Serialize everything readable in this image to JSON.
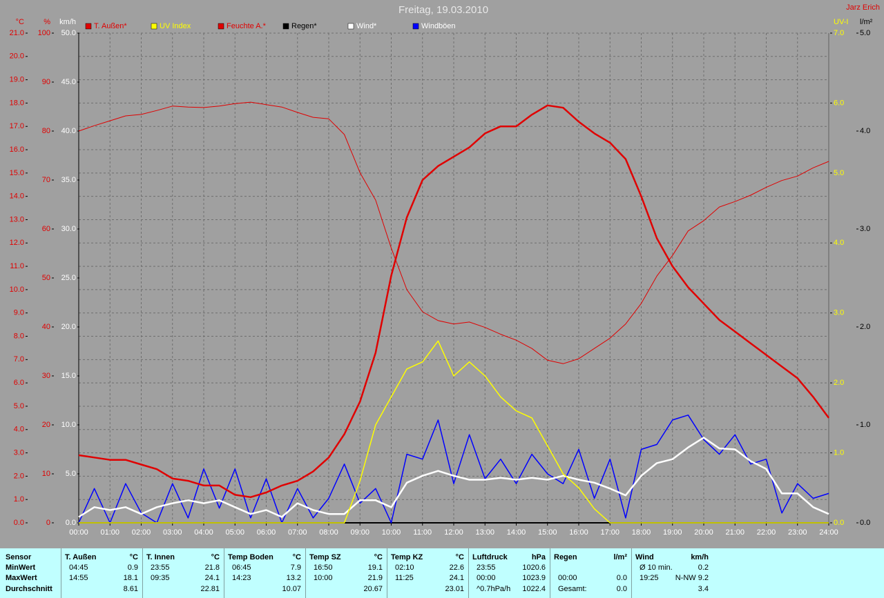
{
  "chart_data": {
    "type": "line",
    "title": "Freitag, 19.03.2010",
    "author": "Jarz Erich",
    "grid": true,
    "xlim": [
      0,
      24
    ],
    "xticks": [
      {
        "value": 0,
        "label": "00:00"
      },
      {
        "value": 1,
        "label": "01:00"
      },
      {
        "value": 2,
        "label": "02:00"
      },
      {
        "value": 3,
        "label": "03:00"
      },
      {
        "value": 4,
        "label": "04:00"
      },
      {
        "value": 5,
        "label": "05:00"
      },
      {
        "value": 6,
        "label": "06:00"
      },
      {
        "value": 7,
        "label": "07:00"
      },
      {
        "value": 8,
        "label": "08:00"
      },
      {
        "value": 9,
        "label": "09:00"
      },
      {
        "value": 10,
        "label": "10:00"
      },
      {
        "value": 11,
        "label": "11:00"
      },
      {
        "value": 12,
        "label": "12:00"
      },
      {
        "value": 13,
        "label": "13:00"
      },
      {
        "value": 14,
        "label": "14:00"
      },
      {
        "value": 15,
        "label": "15:00"
      },
      {
        "value": 16,
        "label": "16:00"
      },
      {
        "value": 17,
        "label": "17:00"
      },
      {
        "value": 18,
        "label": "18:00"
      },
      {
        "value": 19,
        "label": "19:00"
      },
      {
        "value": 20,
        "label": "20:00"
      },
      {
        "value": 21,
        "label": "21:00"
      },
      {
        "value": 22,
        "label": "22:00"
      },
      {
        "value": 23,
        "label": "23:00"
      },
      {
        "value": 24,
        "label": "24:00"
      }
    ],
    "axes": [
      {
        "label": "°C",
        "side": "left",
        "color": "#e00000",
        "lim": [
          0,
          21
        ],
        "ticks": [
          {
            "value": 0,
            "label": "0.0"
          },
          {
            "value": 1,
            "label": "1.0"
          },
          {
            "value": 2,
            "label": "2.0"
          },
          {
            "value": 3,
            "label": "3.0"
          },
          {
            "value": 4,
            "label": "4.0"
          },
          {
            "value": 5,
            "label": "5.0"
          },
          {
            "value": 6,
            "label": "6.0"
          },
          {
            "value": 7,
            "label": "7.0"
          },
          {
            "value": 8,
            "label": "8.0"
          },
          {
            "value": 9,
            "label": "9.0"
          },
          {
            "value": 10,
            "label": "10.0"
          },
          {
            "value": 11,
            "label": "11.0"
          },
          {
            "value": 12,
            "label": "12.0"
          },
          {
            "value": 13,
            "label": "13.0"
          },
          {
            "value": 14,
            "label": "14.0"
          },
          {
            "value": 15,
            "label": "15.0"
          },
          {
            "value": 16,
            "label": "16.0"
          },
          {
            "value": 17,
            "label": "17.0"
          },
          {
            "value": 18,
            "label": "18.0"
          },
          {
            "value": 19,
            "label": "19.0"
          },
          {
            "value": 20,
            "label": "20.0"
          },
          {
            "value": 21,
            "label": "21.0"
          }
        ]
      },
      {
        "label": "%",
        "side": "left",
        "color": "#e00000",
        "lim": [
          0,
          100
        ],
        "ticks": [
          0,
          10,
          20,
          30,
          40,
          50,
          60,
          70,
          80,
          90,
          100
        ]
      },
      {
        "label": "km/h",
        "side": "left",
        "color": "#ffffff",
        "lim": [
          0,
          50
        ],
        "ticks": [
          {
            "value": 0,
            "label": "0.0"
          },
          {
            "value": 5,
            "label": "5.0"
          },
          {
            "value": 10,
            "label": "10.0"
          },
          {
            "value": 15,
            "label": "15.0"
          },
          {
            "value": 20,
            "label": "20.0"
          },
          {
            "value": 25,
            "label": "25.0"
          },
          {
            "value": 30,
            "label": "30.0"
          },
          {
            "value": 35,
            "label": "35.0"
          },
          {
            "value": 40,
            "label": "40.0"
          },
          {
            "value": 45,
            "label": "45.0"
          },
          {
            "value": 50,
            "label": "50.0"
          }
        ]
      },
      {
        "label": "UV-I",
        "side": "right",
        "color": "#ffff00",
        "lim": [
          0,
          7
        ],
        "ticks": [
          {
            "value": 0,
            "label": "0.0"
          },
          {
            "value": 1,
            "label": "1.0"
          },
          {
            "value": 2,
            "label": "2.0"
          },
          {
            "value": 3,
            "label": "3.0"
          },
          {
            "value": 4,
            "label": "4.0"
          },
          {
            "value": 5,
            "label": "5.0"
          },
          {
            "value": 6,
            "label": "6.0"
          },
          {
            "value": 7,
            "label": "7.0"
          }
        ]
      },
      {
        "label": "l/m²",
        "side": "right",
        "color": "#000000",
        "lim": [
          0,
          5
        ],
        "ticks": [
          {
            "value": 0,
            "label": "0.0"
          },
          {
            "value": 1,
            "label": "1.0"
          },
          {
            "value": 2,
            "label": "2.0"
          },
          {
            "value": 3,
            "label": "3.0"
          },
          {
            "value": 4,
            "label": "4.0"
          },
          {
            "value": 5,
            "label": "5.0"
          }
        ]
      }
    ],
    "x": [
      0,
      0.5,
      1,
      1.5,
      2,
      2.5,
      3,
      3.5,
      4,
      4.5,
      5,
      5.5,
      6,
      6.5,
      7,
      7.5,
      8,
      8.5,
      9,
      9.5,
      10,
      10.5,
      11,
      11.5,
      12,
      12.5,
      13,
      13.5,
      14,
      14.5,
      15,
      15.5,
      16,
      16.5,
      17,
      17.5,
      18,
      18.5,
      19,
      19.5,
      20,
      20.5,
      21,
      21.5,
      22,
      22.5,
      23,
      23.5,
      24
    ],
    "series": [
      {
        "name": "T. Außen*",
        "color": "#e00000",
        "axis": 0,
        "width": 2.5,
        "values": [
          2.9,
          2.8,
          2.7,
          2.7,
          2.5,
          2.3,
          1.9,
          1.8,
          1.6,
          1.6,
          1.2,
          1.1,
          1.3,
          1.6,
          1.8,
          2.2,
          2.8,
          3.8,
          5.2,
          7.3,
          10.6,
          13.1,
          14.7,
          15.3,
          15.7,
          16.1,
          16.7,
          17.0,
          17.0,
          17.5,
          17.9,
          17.8,
          17.2,
          16.7,
          16.3,
          15.6,
          14.0,
          12.2,
          11.0,
          10.1,
          9.4,
          8.7,
          8.2,
          7.7,
          7.2,
          6.7,
          6.2,
          5.4,
          4.5
        ]
      },
      {
        "name": "UV Index",
        "color": "#ffff00",
        "axis": 3,
        "width": 1.5,
        "values": [
          0,
          0,
          0,
          0,
          0,
          0,
          0,
          0,
          0,
          0,
          0,
          0,
          0,
          0,
          0,
          0,
          0,
          0,
          0.6,
          1.4,
          1.8,
          2.2,
          2.3,
          2.6,
          2.1,
          2.3,
          2.1,
          1.8,
          1.6,
          1.5,
          1.1,
          0.7,
          0.5,
          0.2,
          0,
          0,
          0,
          0,
          0,
          0,
          0,
          0,
          0,
          0,
          0,
          0,
          0,
          0,
          0
        ]
      },
      {
        "name": "Feuchte A.*",
        "color": "#e00000",
        "axis": 1,
        "width": 1,
        "values": [
          80.0,
          81.1,
          82.1,
          83.1,
          83.4,
          84.2,
          85.1,
          84.9,
          84.8,
          85.1,
          85.6,
          85.9,
          85.4,
          84.9,
          83.8,
          82.8,
          82.5,
          79.3,
          71.5,
          65.9,
          56.1,
          47.6,
          43.1,
          41.3,
          40.6,
          41.0,
          39.9,
          38.5,
          37.3,
          35.6,
          33.2,
          32.5,
          33.5,
          35.6,
          37.7,
          40.6,
          44.8,
          50.4,
          54.6,
          59.6,
          61.7,
          64.5,
          65.6,
          66.9,
          68.5,
          69.9,
          70.8,
          72.5,
          73.8
        ]
      },
      {
        "name": "Regen*",
        "color": "#000000",
        "axis": 4,
        "width": 2,
        "values": [
          0,
          0,
          0,
          0,
          0,
          0,
          0,
          0,
          0,
          0,
          0,
          0,
          0,
          0,
          0,
          0,
          0,
          0,
          0,
          0,
          0,
          0,
          0,
          0,
          0,
          0,
          0,
          0,
          0,
          0,
          0,
          0,
          0,
          0,
          0,
          0,
          0,
          0,
          0,
          0,
          0,
          0,
          0,
          0,
          0,
          0,
          0,
          0,
          0
        ]
      },
      {
        "name": "Wind*",
        "color": "#ffffff",
        "axis": 2,
        "width": 2.5,
        "values": [
          0.6,
          1.6,
          1.3,
          1.6,
          0.9,
          1.6,
          2.0,
          2.3,
          2.0,
          2.3,
          1.6,
          0.9,
          1.3,
          0.6,
          2.0,
          1.3,
          0.9,
          0.9,
          2.3,
          2.3,
          1.6,
          4.1,
          4.8,
          5.3,
          4.8,
          4.4,
          4.4,
          4.6,
          4.4,
          4.6,
          4.4,
          4.8,
          4.4,
          4.1,
          3.5,
          2.8,
          4.8,
          6.1,
          6.5,
          7.7,
          8.7,
          7.6,
          7.5,
          6.3,
          5.5,
          3.0,
          3.0,
          1.6,
          0.9
        ]
      },
      {
        "name": "Windböen",
        "color": "#0000ff",
        "axis": 2,
        "width": 1.5,
        "values": [
          0,
          3.5,
          0,
          4.0,
          1.0,
          0,
          4.0,
          0.5,
          5.5,
          1.5,
          5.5,
          0.5,
          4.5,
          0,
          3.5,
          0.5,
          2.5,
          6.0,
          2.0,
          3.5,
          0,
          7.0,
          6.5,
          10.5,
          4.0,
          9.0,
          4.5,
          6.5,
          4.0,
          7.0,
          5.0,
          4.0,
          7.5,
          2.5,
          6.5,
          0.5,
          7.5,
          8.0,
          10.5,
          11.0,
          8.5,
          7.0,
          9.0,
          6.0,
          6.5,
          1.0,
          4.0,
          2.5,
          3.0
        ]
      }
    ]
  },
  "stats": {
    "row_labels": [
      "Sensor",
      "MinWert",
      "MaxWert",
      "Durchschnitt"
    ],
    "groups": [
      {
        "name": "T. Außen",
        "unit": "°C",
        "rows": [
          {
            "time": "04:45",
            "value": "0.9"
          },
          {
            "time": "14:55",
            "value": "18.1"
          },
          {
            "value": "8.61"
          }
        ]
      },
      {
        "name": "T. Innen",
        "unit": "°C",
        "rows": [
          {
            "time": "23:55",
            "value": "21.8"
          },
          {
            "time": "09:35",
            "value": "24.1"
          },
          {
            "value": "22.81"
          }
        ]
      },
      {
        "name": "Temp Boden",
        "unit": "°C",
        "rows": [
          {
            "time": "06:45",
            "value": "7.9"
          },
          {
            "time": "14:23",
            "value": "13.2"
          },
          {
            "value": "10.07"
          }
        ]
      },
      {
        "name": "Temp SZ",
        "unit": "°C",
        "rows": [
          {
            "time": "16:50",
            "value": "19.1"
          },
          {
            "time": "10:00",
            "value": "21.9"
          },
          {
            "value": "20.67"
          }
        ]
      },
      {
        "name": "Temp KZ",
        "unit": "°C",
        "rows": [
          {
            "time": "02:10",
            "value": "22.6"
          },
          {
            "time": "11:25",
            "value": "24.1"
          },
          {
            "value": "23.01"
          }
        ]
      },
      {
        "name": "Luftdruck",
        "unit": "hPa",
        "rows": [
          {
            "time": "23:55",
            "value": "1020.6"
          },
          {
            "time": "00:00",
            "value": "1023.9"
          },
          {
            "time": "^0.7hPa/h",
            "value": "1022.4"
          }
        ]
      },
      {
        "name": "Regen",
        "unit": "l/m²",
        "rows": [
          {},
          {
            "time": "00:00",
            "value": "0.0"
          },
          {
            "time": "Gesamt:",
            "value": "0.0"
          }
        ]
      },
      {
        "name": "Wind",
        "unit": "km/h",
        "rows": [
          {
            "time": "Ø 10 min.",
            "value": "0.2"
          },
          {
            "time": "19:25",
            "value": "N-NW 9.2"
          },
          {
            "value": "3.4"
          }
        ]
      }
    ]
  }
}
